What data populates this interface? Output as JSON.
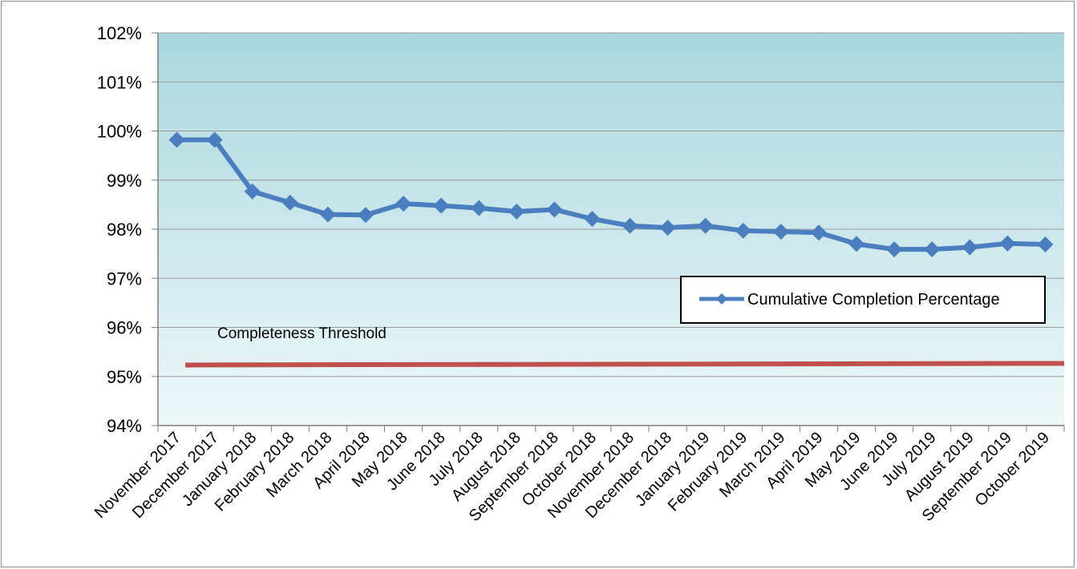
{
  "chart_data": {
    "type": "line",
    "title": "",
    "xlabel": "",
    "ylabel": "",
    "ylim": [
      94,
      102
    ],
    "y_ticks": [
      "94%",
      "95%",
      "96%",
      "97%",
      "98%",
      "99%",
      "100%",
      "101%",
      "102%"
    ],
    "grid": true,
    "legend_position": "right",
    "categories": [
      "November 2017",
      "December 2017",
      "January 2018",
      "February 2018",
      "March 2018",
      "April 2018",
      "May 2018",
      "June 2018",
      "July 2018",
      "August 2018",
      "September 2018",
      "October 2018",
      "November 2018",
      "December 2018",
      "January 2019",
      "February 2019",
      "March 2019",
      "April 2019",
      "May 2019",
      "June 2019",
      "July 2019",
      "August 2019",
      "September 2019",
      "October 2019"
    ],
    "series": [
      {
        "name": "Cumulative Completion Percentage",
        "color": "#4a7ebf",
        "values": [
          99.82,
          99.82,
          98.77,
          98.54,
          98.3,
          98.29,
          98.52,
          98.48,
          98.43,
          98.36,
          98.4,
          98.21,
          98.07,
          98.03,
          98.07,
          97.97,
          97.95,
          97.93,
          97.7,
          97.59,
          97.59,
          97.63,
          97.71,
          97.69
        ]
      }
    ],
    "threshold": {
      "label": "Completeness Threshold",
      "value": 95.25,
      "color": "#c0504d"
    }
  },
  "colors": {
    "plot_bg_top": "#a9d7de",
    "plot_bg_bottom": "#eef8f9",
    "grid": "#9a9a9a",
    "line": "#4a7ebf",
    "threshold": "#c0504d"
  }
}
